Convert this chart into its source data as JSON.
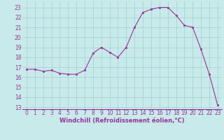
{
  "x": [
    0,
    1,
    2,
    3,
    4,
    5,
    6,
    7,
    8,
    9,
    10,
    11,
    12,
    13,
    14,
    15,
    16,
    17,
    18,
    19,
    20,
    21,
    22,
    23
  ],
  "y": [
    16.8,
    16.8,
    16.6,
    16.7,
    16.4,
    16.3,
    16.3,
    16.7,
    18.4,
    19.0,
    18.5,
    18.0,
    19.0,
    21.0,
    22.5,
    22.8,
    23.0,
    23.0,
    22.2,
    21.2,
    21.0,
    18.8,
    16.3,
    13.2
  ],
  "line_color": "#993399",
  "marker_color": "#993399",
  "bg_color": "#c8eaea",
  "grid_color": "#a8d4d4",
  "xlabel": "Windchill (Refroidissement éolien,°C)",
  "ylabel_ticks": [
    13,
    14,
    15,
    16,
    17,
    18,
    19,
    20,
    21,
    22,
    23
  ],
  "xlim": [
    -0.5,
    23.5
  ],
  "ylim": [
    12.8,
    23.6
  ],
  "xticks": [
    0,
    1,
    2,
    3,
    4,
    5,
    6,
    7,
    8,
    9,
    10,
    11,
    12,
    13,
    14,
    15,
    16,
    17,
    18,
    19,
    20,
    21,
    22,
    23
  ],
  "tick_fontsize": 5.5,
  "xlabel_fontsize": 6.0,
  "xlabel_bold": true
}
